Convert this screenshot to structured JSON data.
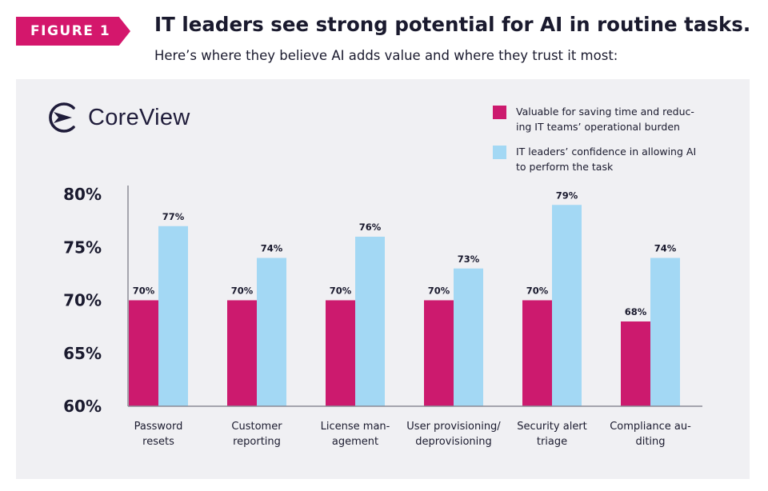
{
  "header": {
    "figure_tag": "FIGURE 1",
    "title": "IT leaders see strong potential for AI in routine tasks.",
    "subtitle": "Here’s where they believe AI adds value and where they trust it most:"
  },
  "brand": {
    "name": "CoreView"
  },
  "colors": {
    "valuable": "#cc1a6e",
    "confidence": "#a3d8f4",
    "accent": "#d4176c"
  },
  "chart_data": {
    "type": "bar",
    "title": "IT leaders see strong potential for AI in routine tasks.",
    "categories": [
      {
        "line1": "Password",
        "line2": "resets"
      },
      {
        "line1": "Customer",
        "line2": "reporting"
      },
      {
        "line1": "License man-",
        "line2": "agement"
      },
      {
        "line1": "User provisioning/",
        "line2": "deprovisioning"
      },
      {
        "line1": "Security alert",
        "line2": "triage"
      },
      {
        "line1": "Compliance au-",
        "line2": "diting"
      }
    ],
    "series": [
      {
        "name": "Valuable for saving time and reducing IT teams’ operational burden",
        "legend_line1": "Valuable for saving time and reduc-",
        "legend_line2": "ing IT teams’ operational burden",
        "color": "#cc1a6e",
        "values": [
          70,
          70,
          70,
          70,
          70,
          68
        ],
        "labels": [
          "70%",
          "70%",
          "70%",
          "70%",
          "70%",
          "68%"
        ]
      },
      {
        "name": "IT leaders’ confidence in allowing AI to perform the task",
        "legend_line1": "IT leaders’ confidence in allowing AI",
        "legend_line2": "to perform the task",
        "color": "#a3d8f4",
        "values": [
          77,
          74,
          76,
          73,
          79,
          74
        ],
        "labels": [
          "77%",
          "74%",
          "76%",
          "73%",
          "79%",
          "74%"
        ]
      }
    ],
    "ylim": [
      60,
      80
    ],
    "yticks": [
      60,
      65,
      70,
      75,
      80
    ],
    "ytick_labels": [
      "60%",
      "65%",
      "70%",
      "75%",
      "80%"
    ],
    "xlabel": "",
    "ylabel": "",
    "legend": "top-right",
    "grid": false
  }
}
